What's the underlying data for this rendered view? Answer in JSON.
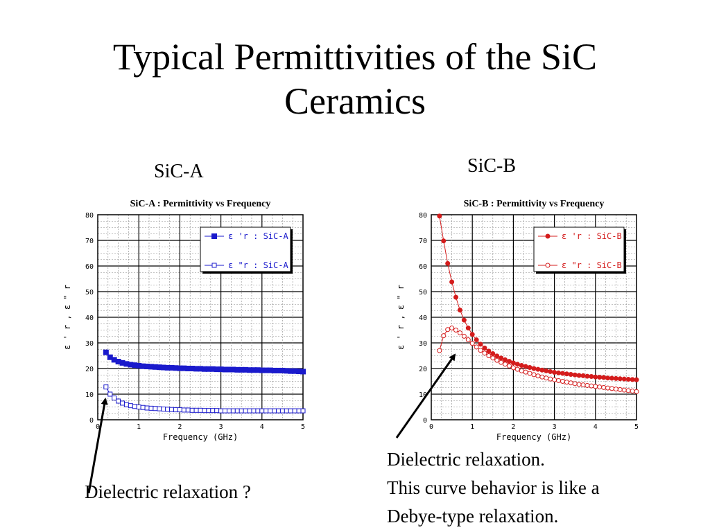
{
  "slide": {
    "title_lines": [
      "Typical Permittivities of the SiC",
      "Ceramics"
    ],
    "label_a": "SiC-A",
    "label_b": "SiC-B",
    "caption_a": "Dielectric relaxation ?",
    "caption_b_lines": [
      "Dielectric relaxation.",
      "This curve behavior is like a",
      "Debye-type relaxation."
    ],
    "colors": {
      "sic_a": "#1a1acc",
      "sic_b": "#d41c1c",
      "axis": "#000000",
      "grid": "#000000"
    }
  },
  "chart_data": [
    {
      "type": "scatter",
      "title": "SiC-A : Permittivity vs Frequency",
      "xlabel": "Frequency (GHz)",
      "ylabel": "ε ' r  ,  ε \" r",
      "xlim": [
        0,
        5
      ],
      "ylim": [
        0,
        80
      ],
      "x_ticks": [
        "0",
        "1",
        "2",
        "3",
        "4",
        "5"
      ],
      "y_ticks": [
        "0",
        "10",
        "20",
        "30",
        "40",
        "50",
        "60",
        "70",
        "80"
      ],
      "grid": true,
      "legend_position": "top-right",
      "series": [
        {
          "name": "ε 'r : SiC-A",
          "marker": "square-filled",
          "color": "#1a1acc",
          "x": [
            0.2,
            0.3,
            0.4,
            0.5,
            0.6,
            0.7,
            0.8,
            0.9,
            1.0,
            1.1,
            1.2,
            1.3,
            1.4,
            1.5,
            1.6,
            1.7,
            1.8,
            1.9,
            2.0,
            2.1,
            2.2,
            2.3,
            2.4,
            2.5,
            2.6,
            2.7,
            2.8,
            2.9,
            3.0,
            3.1,
            3.2,
            3.3,
            3.4,
            3.5,
            3.6,
            3.7,
            3.8,
            3.9,
            4.0,
            4.1,
            4.2,
            4.3,
            4.4,
            4.5,
            4.6,
            4.7,
            4.8,
            4.9,
            5.0
          ],
          "y": [
            26.3,
            24.4,
            23.4,
            22.7,
            22.2,
            21.8,
            21.5,
            21.3,
            21.1,
            20.9,
            20.8,
            20.7,
            20.6,
            20.5,
            20.4,
            20.3,
            20.3,
            20.2,
            20.1,
            20.1,
            20.0,
            20.0,
            19.9,
            19.9,
            19.8,
            19.8,
            19.8,
            19.7,
            19.7,
            19.6,
            19.6,
            19.6,
            19.5,
            19.5,
            19.5,
            19.4,
            19.4,
            19.4,
            19.3,
            19.3,
            19.3,
            19.2,
            19.2,
            19.2,
            19.1,
            19.0,
            19.0,
            18.9,
            18.8
          ]
        },
        {
          "name": "ε \"r : SiC-A",
          "marker": "square-open",
          "color": "#1a1acc",
          "x": [
            0.2,
            0.3,
            0.4,
            0.5,
            0.6,
            0.7,
            0.8,
            0.9,
            1.0,
            1.1,
            1.2,
            1.3,
            1.4,
            1.5,
            1.6,
            1.7,
            1.8,
            1.9,
            2.0,
            2.1,
            2.2,
            2.3,
            2.4,
            2.5,
            2.6,
            2.7,
            2.8,
            2.9,
            3.0,
            3.1,
            3.2,
            3.3,
            3.4,
            3.5,
            3.6,
            3.7,
            3.8,
            3.9,
            4.0,
            4.1,
            4.2,
            4.3,
            4.4,
            4.5,
            4.6,
            4.7,
            4.8,
            4.9,
            5.0
          ],
          "y": [
            12.8,
            10.0,
            8.5,
            7.3,
            6.5,
            5.9,
            5.5,
            5.2,
            5.0,
            4.8,
            4.6,
            4.5,
            4.4,
            4.3,
            4.2,
            4.1,
            4.0,
            3.9,
            3.9,
            3.8,
            3.8,
            3.7,
            3.7,
            3.7,
            3.6,
            3.6,
            3.6,
            3.6,
            3.5,
            3.5,
            3.5,
            3.5,
            3.5,
            3.5,
            3.5,
            3.5,
            3.5,
            3.5,
            3.5,
            3.5,
            3.5,
            3.5,
            3.5,
            3.5,
            3.5,
            3.5,
            3.5,
            3.5,
            3.5
          ]
        }
      ]
    },
    {
      "type": "scatter",
      "title": "SiC-B : Permittivity vs Frequency",
      "xlabel": "Frequency (GHz)",
      "ylabel": "ε ' r  ,  ε \" r",
      "xlim": [
        0,
        5
      ],
      "ylim": [
        0,
        80
      ],
      "x_ticks": [
        "0",
        "1",
        "2",
        "3",
        "4",
        "5"
      ],
      "y_ticks": [
        "0",
        "10",
        "20",
        "30",
        "40",
        "50",
        "60",
        "70",
        "80"
      ],
      "grid": true,
      "legend_position": "top-right",
      "series": [
        {
          "name": "ε 'r : SiC-B",
          "marker": "circle-filled",
          "color": "#d41c1c",
          "x": [
            0.2,
            0.3,
            0.4,
            0.5,
            0.6,
            0.7,
            0.8,
            0.9,
            1.0,
            1.1,
            1.2,
            1.3,
            1.4,
            1.5,
            1.6,
            1.7,
            1.8,
            1.9,
            2.0,
            2.1,
            2.2,
            2.3,
            2.4,
            2.5,
            2.6,
            2.7,
            2.8,
            2.9,
            3.0,
            3.1,
            3.2,
            3.3,
            3.4,
            3.5,
            3.6,
            3.7,
            3.8,
            3.9,
            4.0,
            4.1,
            4.2,
            4.3,
            4.4,
            4.5,
            4.6,
            4.7,
            4.8,
            4.9,
            5.0
          ],
          "y": [
            79.5,
            69.8,
            61.0,
            53.8,
            47.8,
            42.8,
            38.9,
            35.8,
            33.3,
            31.2,
            29.5,
            28.0,
            26.8,
            25.8,
            24.9,
            24.1,
            23.4,
            22.8,
            22.2,
            21.7,
            21.2,
            20.8,
            20.4,
            20.0,
            19.7,
            19.4,
            19.1,
            18.8,
            18.5,
            18.3,
            18.1,
            17.9,
            17.7,
            17.5,
            17.3,
            17.2,
            17.0,
            16.9,
            16.7,
            16.6,
            16.5,
            16.3,
            16.2,
            16.1,
            16.0,
            15.9,
            15.8,
            15.7,
            15.6
          ]
        },
        {
          "name": "ε \"r : SiC-B",
          "marker": "circle-open",
          "color": "#d41c1c",
          "x": [
            0.2,
            0.3,
            0.4,
            0.5,
            0.6,
            0.7,
            0.8,
            0.9,
            1.0,
            1.1,
            1.2,
            1.3,
            1.4,
            1.5,
            1.6,
            1.7,
            1.8,
            1.9,
            2.0,
            2.1,
            2.2,
            2.3,
            2.4,
            2.5,
            2.6,
            2.7,
            2.8,
            2.9,
            3.0,
            3.1,
            3.2,
            3.3,
            3.4,
            3.5,
            3.6,
            3.7,
            3.8,
            3.9,
            4.0,
            4.1,
            4.2,
            4.3,
            4.4,
            4.5,
            4.6,
            4.7,
            4.8,
            4.9,
            5.0
          ],
          "y": [
            27.0,
            32.8,
            35.2,
            35.8,
            35.0,
            33.9,
            32.6,
            31.2,
            29.8,
            28.4,
            27.1,
            26.0,
            25.0,
            24.1,
            23.2,
            22.4,
            21.7,
            21.0,
            20.3,
            19.7,
            19.1,
            18.6,
            18.1,
            17.6,
            17.1,
            16.7,
            16.3,
            15.9,
            15.6,
            15.3,
            15.0,
            14.7,
            14.4,
            14.1,
            13.8,
            13.6,
            13.4,
            13.2,
            13.0,
            12.8,
            12.6,
            12.4,
            12.2,
            12.0,
            11.8,
            11.6,
            11.4,
            11.2,
            11.0
          ]
        }
      ]
    }
  ]
}
